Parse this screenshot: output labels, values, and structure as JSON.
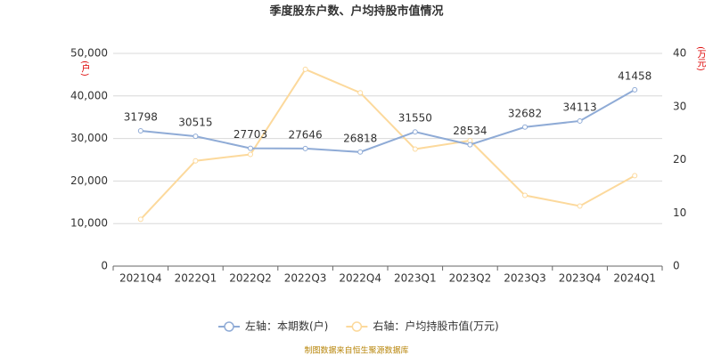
{
  "chart_data": {
    "type": "line",
    "title": "季度股东户数、户均持股市值情况",
    "y_axis_label": "(户)",
    "y2_axis_label": "(万元)",
    "source": "制图数据来自恒生聚源数据库",
    "categories": [
      "2021Q4",
      "2022Q1",
      "2022Q2",
      "2022Q3",
      "2022Q4",
      "2023Q1",
      "2023Q2",
      "2023Q3",
      "2023Q4",
      "2024Q1"
    ],
    "series": [
      {
        "name": "左轴：本期数(户)",
        "color": "#8fabd6",
        "values": [
          31798,
          30515,
          27703,
          27646,
          26818,
          31550,
          28534,
          32682,
          34113,
          41458
        ]
      },
      {
        "name": "右轴：户均持股市值(万元)",
        "color": "#fcd99c",
        "axis": "y2",
        "values": [
          8.8,
          19.8,
          21,
          37,
          32.6,
          22,
          23.6,
          13.3,
          11.3,
          17
        ]
      }
    ],
    "ylim": [
      0,
      50000
    ],
    "yticks": [
      0,
      {
        "value": 10000,
        "label": "10,000"
      },
      {
        "value": 20000,
        "label": "20,000"
      },
      {
        "value": 30000,
        "label": "30,000"
      },
      {
        "value": 40000,
        "label": "40,000"
      },
      {
        "value": 50000,
        "label": "50,000"
      }
    ],
    "y2lim": [
      0,
      40
    ],
    "y2ticks": [
      0,
      10,
      20,
      30,
      40
    ],
    "grid": true
  }
}
